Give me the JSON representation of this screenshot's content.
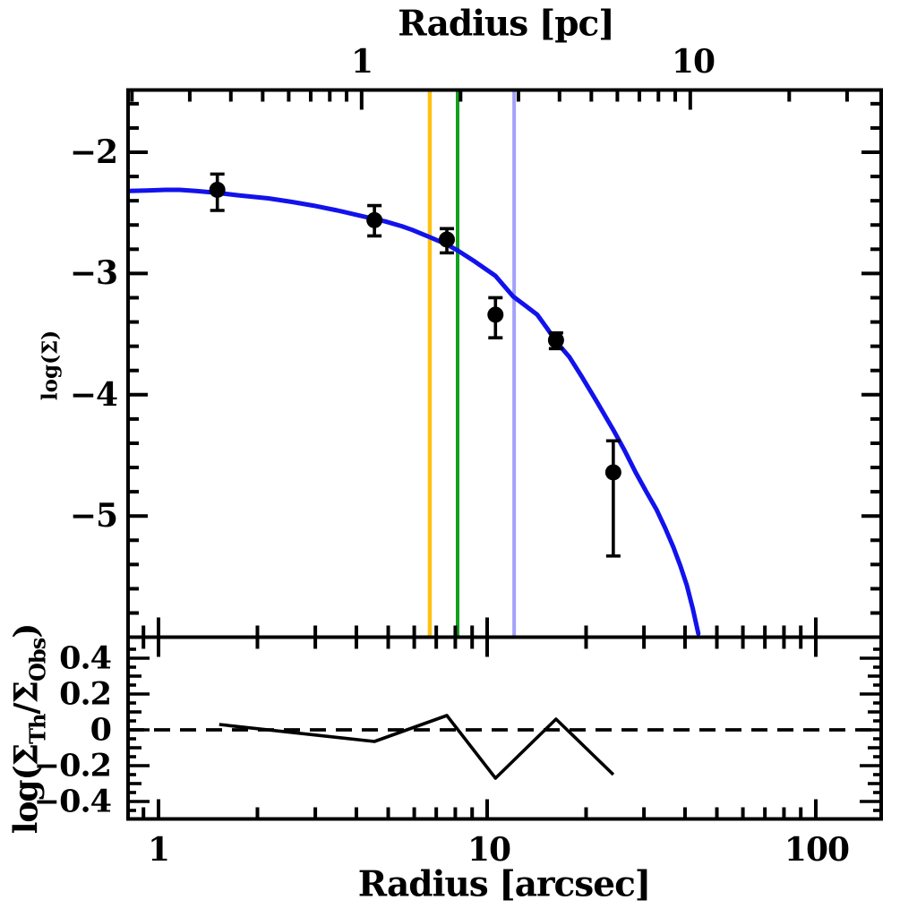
{
  "figure": {
    "top_axis": {
      "title": "Radius [pc]",
      "tick_labels": [
        "1",
        "10"
      ]
    },
    "bottom_axis": {
      "title": "Radius [arcsec]",
      "tick_labels": [
        "1",
        "10",
        "100"
      ]
    },
    "top_panel": {
      "ylabel": "log(Σ)",
      "y_tick_labels": [
        "−2",
        "−3",
        "−4",
        "−5"
      ]
    },
    "bottom_panel": {
      "y_tick_labels": [
        "0.4",
        "0.2",
        "0",
        "−0.2",
        "−0.4"
      ],
      "ylabel_parts": {
        "prefix": "log(Σ",
        "sub1": "Th",
        "mid": "/Σ",
        "sub2": "Obs",
        "suffix": ")"
      }
    }
  },
  "chart_data": {
    "type": "line",
    "xscale": "log",
    "xlabel_bottom": "Radius [arcsec]",
    "xlabel_top": "Radius [pc]",
    "x_range_arcsec": [
      0.81,
      158
    ],
    "arcsec_per_pc": 4.15,
    "grid": false,
    "x_axis": {
      "major_ticks_arcsec": [
        1,
        10,
        100
      ],
      "minor_ticks_arcsec": [
        0.9,
        2,
        3,
        4,
        5,
        6,
        7,
        8,
        9,
        20,
        30,
        40,
        50,
        60,
        70,
        80,
        90
      ],
      "major_ticks_pc": [
        1,
        10
      ],
      "minor_ticks_pc": [
        0.2,
        0.3,
        0.4,
        0.5,
        0.6,
        0.7,
        0.8,
        0.9,
        2,
        3,
        4,
        5,
        6,
        7,
        8,
        9,
        20,
        30
      ]
    },
    "top_panel": {
      "ylabel": "log(Σ)",
      "ylim": [
        -6.0,
        -1.48
      ],
      "y_major_ticks": [
        -2,
        -3,
        -4,
        -5
      ],
      "y_minor_step": 0.2,
      "observed_points": {
        "marker": "filled-circle",
        "color": "#000000",
        "x_arcsec": [
          1.51,
          4.54,
          7.54,
          10.6,
          16.2,
          24.2
        ],
        "log_sigma": [
          -2.31,
          -2.56,
          -2.72,
          -3.34,
          -3.55,
          -4.64
        ],
        "err_up": [
          0.13,
          0.12,
          0.09,
          0.14,
          0.06,
          0.26
        ],
        "err_down": [
          0.17,
          0.13,
          0.11,
          0.19,
          0.07,
          0.69
        ]
      },
      "model_curve": {
        "color": "#1212EC",
        "x_arcsec": [
          0.81,
          0.92,
          1.05,
          1.16,
          1.3,
          1.51,
          1.75,
          2.16,
          2.55,
          2.96,
          3.5,
          4.06,
          4.54,
          4.89,
          5.5,
          5.91,
          6.69,
          7.54,
          8.13,
          9.16,
          10.6,
          12.0,
          13.0,
          14.2,
          15.2,
          16.2,
          17.8,
          19.4,
          21.6,
          24.2,
          26.2,
          28.3,
          30.5,
          32.8,
          34.8,
          36.9,
          38.7,
          40.5,
          42.2,
          43.9
        ],
        "log_sigma": [
          -2.32,
          -2.315,
          -2.31,
          -2.31,
          -2.32,
          -2.335,
          -2.355,
          -2.38,
          -2.41,
          -2.44,
          -2.48,
          -2.52,
          -2.55,
          -2.57,
          -2.61,
          -2.64,
          -2.7,
          -2.76,
          -2.81,
          -2.9,
          -3.02,
          -3.19,
          -3.26,
          -3.34,
          -3.45,
          -3.56,
          -3.69,
          -3.85,
          -4.06,
          -4.29,
          -4.46,
          -4.64,
          -4.8,
          -4.95,
          -5.1,
          -5.26,
          -5.41,
          -5.57,
          -5.76,
          -5.97
        ]
      },
      "vertical_lines": [
        {
          "name": "vline-orange",
          "x_arcsec": 6.69,
          "color": "#FFC112",
          "width": 4.5
        },
        {
          "name": "vline-green",
          "x_arcsec": 8.13,
          "color": "#12A01F",
          "width": 4
        },
        {
          "name": "vline-periwinkle",
          "x_arcsec": 12.08,
          "color": "#A2A2F8",
          "width": 4
        }
      ]
    },
    "bottom_panel": {
      "ylabel": "log(Σ_Th/Σ_Obs)",
      "ylim": [
        -0.5,
        0.5
      ],
      "y_major_ticks": [
        0.4,
        0.2,
        0,
        -0.2,
        -0.4
      ],
      "y_medium_ticks": [
        0.3,
        0.1,
        -0.1,
        -0.3
      ],
      "y_minor_ticks": [
        0.45,
        0.35,
        0.25,
        0.15,
        0.05,
        -0.05,
        -0.15,
        -0.25,
        -0.35,
        -0.45
      ],
      "zero_line_style": "dashed",
      "residuals": {
        "color": "#000000",
        "x_arcsec": [
          1.53,
          4.54,
          7.54,
          10.6,
          16.2,
          24.2
        ],
        "log_ratio": [
          0.03,
          -0.065,
          0.08,
          -0.27,
          0.06,
          -0.25
        ]
      }
    }
  }
}
